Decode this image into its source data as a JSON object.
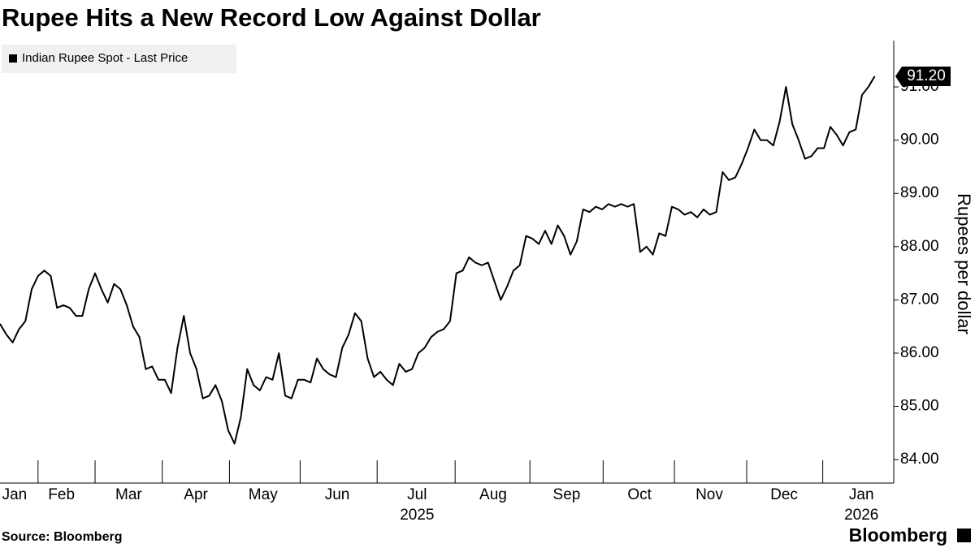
{
  "chart_data": {
    "type": "line",
    "title": "Rupee Hits a New Record Low Against Dollar",
    "source": "Source: Bloomberg",
    "brand": "Bloomberg",
    "y_axis_label": "Rupees per dollar",
    "series": [
      {
        "name": "Indian Rupee Spot - Last Price",
        "color": "#000000",
        "values": [
          86.55,
          86.35,
          86.2,
          86.45,
          86.6,
          87.2,
          87.45,
          87.55,
          87.45,
          86.85,
          86.9,
          86.85,
          86.7,
          86.7,
          87.2,
          87.5,
          87.2,
          86.95,
          87.3,
          87.2,
          86.9,
          86.5,
          86.3,
          85.7,
          85.75,
          85.5,
          85.5,
          85.25,
          86.1,
          86.7,
          86.0,
          85.7,
          85.15,
          85.2,
          85.4,
          85.1,
          84.55,
          84.3,
          84.8,
          85.7,
          85.4,
          85.3,
          85.55,
          85.5,
          86.0,
          85.2,
          85.15,
          85.5,
          85.5,
          85.45,
          85.9,
          85.7,
          85.6,
          85.55,
          86.1,
          86.35,
          86.75,
          86.6,
          85.9,
          85.55,
          85.65,
          85.5,
          85.4,
          85.8,
          85.65,
          85.7,
          86.0,
          86.1,
          86.3,
          86.4,
          86.45,
          86.6,
          87.5,
          87.55,
          87.8,
          87.7,
          87.65,
          87.7,
          87.35,
          87.0,
          87.25,
          87.55,
          87.65,
          88.2,
          88.15,
          88.05,
          88.3,
          88.05,
          88.4,
          88.2,
          87.85,
          88.1,
          88.7,
          88.65,
          88.75,
          88.7,
          88.8,
          88.75,
          88.8,
          88.75,
          88.8,
          87.9,
          88.0,
          87.85,
          88.25,
          88.2,
          88.75,
          88.7,
          88.6,
          88.65,
          88.55,
          88.7,
          88.6,
          88.65,
          89.4,
          89.25,
          89.3,
          89.55,
          89.85,
          90.2,
          90.0,
          90.0,
          89.9,
          90.35,
          91.0,
          90.3,
          90.0,
          89.65,
          89.7,
          89.85,
          89.85,
          90.25,
          90.1,
          89.9,
          90.15,
          90.2,
          90.85,
          91.0,
          91.2
        ]
      }
    ],
    "last_value_label": "91.20",
    "xlim": [
      0,
      141
    ],
    "xticks": [
      {
        "value": 2.3,
        "label": "Jan"
      },
      {
        "value": 9.7,
        "label": "Feb"
      },
      {
        "value": 20.3,
        "label": "Mar"
      },
      {
        "value": 30.9,
        "label": "Apr"
      },
      {
        "value": 41.5,
        "label": "May"
      },
      {
        "value": 53.2,
        "label": "Jun"
      },
      {
        "value": 65.8,
        "label": "Jul"
      },
      {
        "value": 77.8,
        "label": "Aug"
      },
      {
        "value": 89.4,
        "label": "Sep"
      },
      {
        "value": 100.9,
        "label": "Oct"
      },
      {
        "value": 111.9,
        "label": "Nov"
      },
      {
        "value": 123.7,
        "label": "Dec"
      },
      {
        "value": 135.9,
        "label": "Jan"
      }
    ],
    "year_ticks": [
      {
        "value": 65.8,
        "label": "2025"
      },
      {
        "value": 135.9,
        "label": "2026"
      }
    ],
    "ylim": [
      83.56,
      91.87
    ],
    "yticks": [
      {
        "value": 84,
        "label": "84.00"
      },
      {
        "value": 85,
        "label": "85.00"
      },
      {
        "value": 86,
        "label": "86.00"
      },
      {
        "value": 87,
        "label": "87.00"
      },
      {
        "value": 88,
        "label": "88.00"
      },
      {
        "value": 89,
        "label": "89.00"
      },
      {
        "value": 90,
        "label": "90.00"
      },
      {
        "value": 91,
        "label": "91.00"
      }
    ],
    "grid": false
  }
}
